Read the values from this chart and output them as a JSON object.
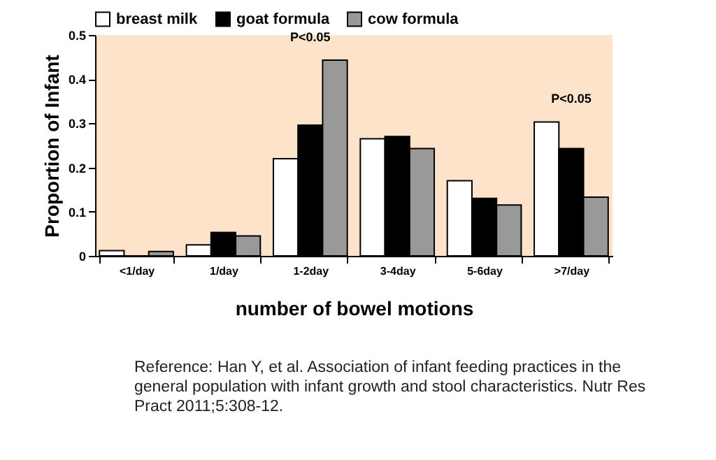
{
  "chart_data": {
    "type": "bar",
    "xlabel": "number of bowel motions",
    "ylabel": "Proportion of Infant",
    "categories": [
      "<1/day",
      "1/day",
      "1-2day",
      "3-4day",
      "5-6day",
      ">7/day"
    ],
    "series": [
      {
        "name": "breast milk",
        "color": "#ffffff",
        "values": [
          0.012,
          0.025,
          0.22,
          0.265,
          0.17,
          0.303
        ]
      },
      {
        "name": "goat formula",
        "color": "#000000",
        "values": [
          0,
          0.053,
          0.296,
          0.27,
          0.13,
          0.243
        ]
      },
      {
        "name": "cow formula",
        "color": "#999999",
        "values": [
          0.01,
          0.045,
          0.443,
          0.243,
          0.115,
          0.133
        ]
      }
    ],
    "ylim": [
      0,
      0.5
    ],
    "yticks": [
      0,
      0.1,
      0.2,
      0.3,
      0.4,
      0.5
    ],
    "legend": "top",
    "grid": false,
    "annotations": [
      "P<0.05",
      "P<0.05",
      "Reference: Han Y, et al. Association of infant feeding practices in the general population with infant growth and stool characteristics. Nutr Res Pract 2011;5:308-12."
    ]
  }
}
